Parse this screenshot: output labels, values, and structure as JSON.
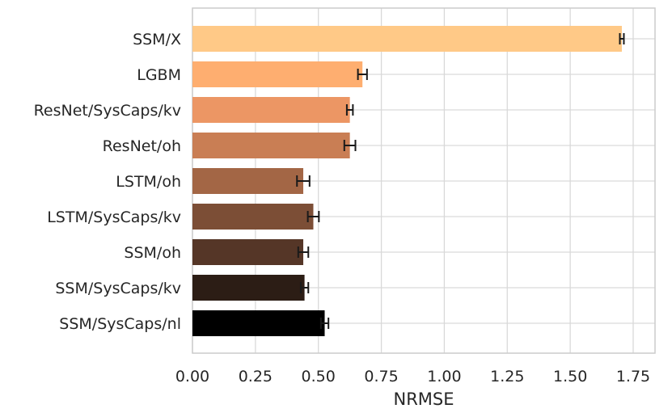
{
  "chart_data": {
    "type": "bar",
    "orientation": "horizontal",
    "categories": [
      "SSM/X",
      "LGBM",
      "ResNet/SysCaps/kv",
      "ResNet/oh",
      "LSTM/oh",
      "LSTM/SysCaps/kv",
      "SSM/oh",
      "SSM/SysCaps/kv",
      "SSM/SysCaps/nl"
    ],
    "values": [
      1.705,
      0.675,
      0.625,
      0.625,
      0.44,
      0.48,
      0.44,
      0.445,
      0.525
    ],
    "errors": [
      0.008,
      0.018,
      0.012,
      0.022,
      0.025,
      0.022,
      0.02,
      0.015,
      0.015
    ],
    "colors": [
      "#ffc987",
      "#feae70",
      "#ec9664",
      "#c97e54",
      "#a36645",
      "#7c4e36",
      "#553627",
      "#2c1d15",
      "#000000"
    ],
    "xlabel": "NRMSE",
    "ylabel": "",
    "xlim": [
      0,
      1.78
    ],
    "xticks": [
      "0.00",
      "0.25",
      "0.50",
      "0.75",
      "1.00",
      "1.25",
      "1.50",
      "1.75"
    ],
    "grid": true
  }
}
